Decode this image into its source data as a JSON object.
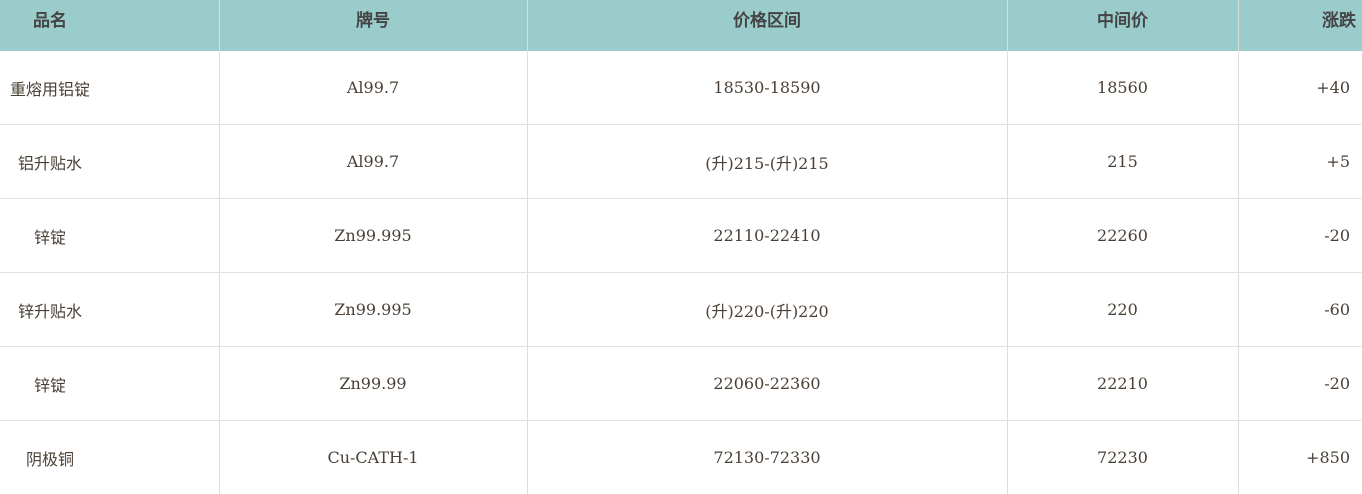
{
  "columns": [
    "品名",
    "牌号",
    "价格区间",
    "中间价",
    "涨跌"
  ],
  "rows": [
    [
      "重熔用铝锭",
      "Al99.7",
      "18530-18590",
      "18560",
      "+40"
    ],
    [
      "铝升贴水",
      "Al99.7",
      "(升)215-(升)215",
      "215",
      "+5"
    ],
    [
      "锌锭",
      "Zn99.995",
      "22110-22410",
      "22260",
      "-20"
    ],
    [
      "锌升贴水",
      "Zn99.995",
      "(升)220-(升)220",
      "220",
      "-60"
    ],
    [
      "锌锭",
      "Zn99.99",
      "22060-22360",
      "22210",
      "-20"
    ],
    [
      "阴极铜",
      "Cu-CATH-1",
      "72130-72330",
      "72230",
      "+850"
    ]
  ],
  "colors": {
    "header_bg": "#9bcccc",
    "border": "#dcdcdc"
  }
}
